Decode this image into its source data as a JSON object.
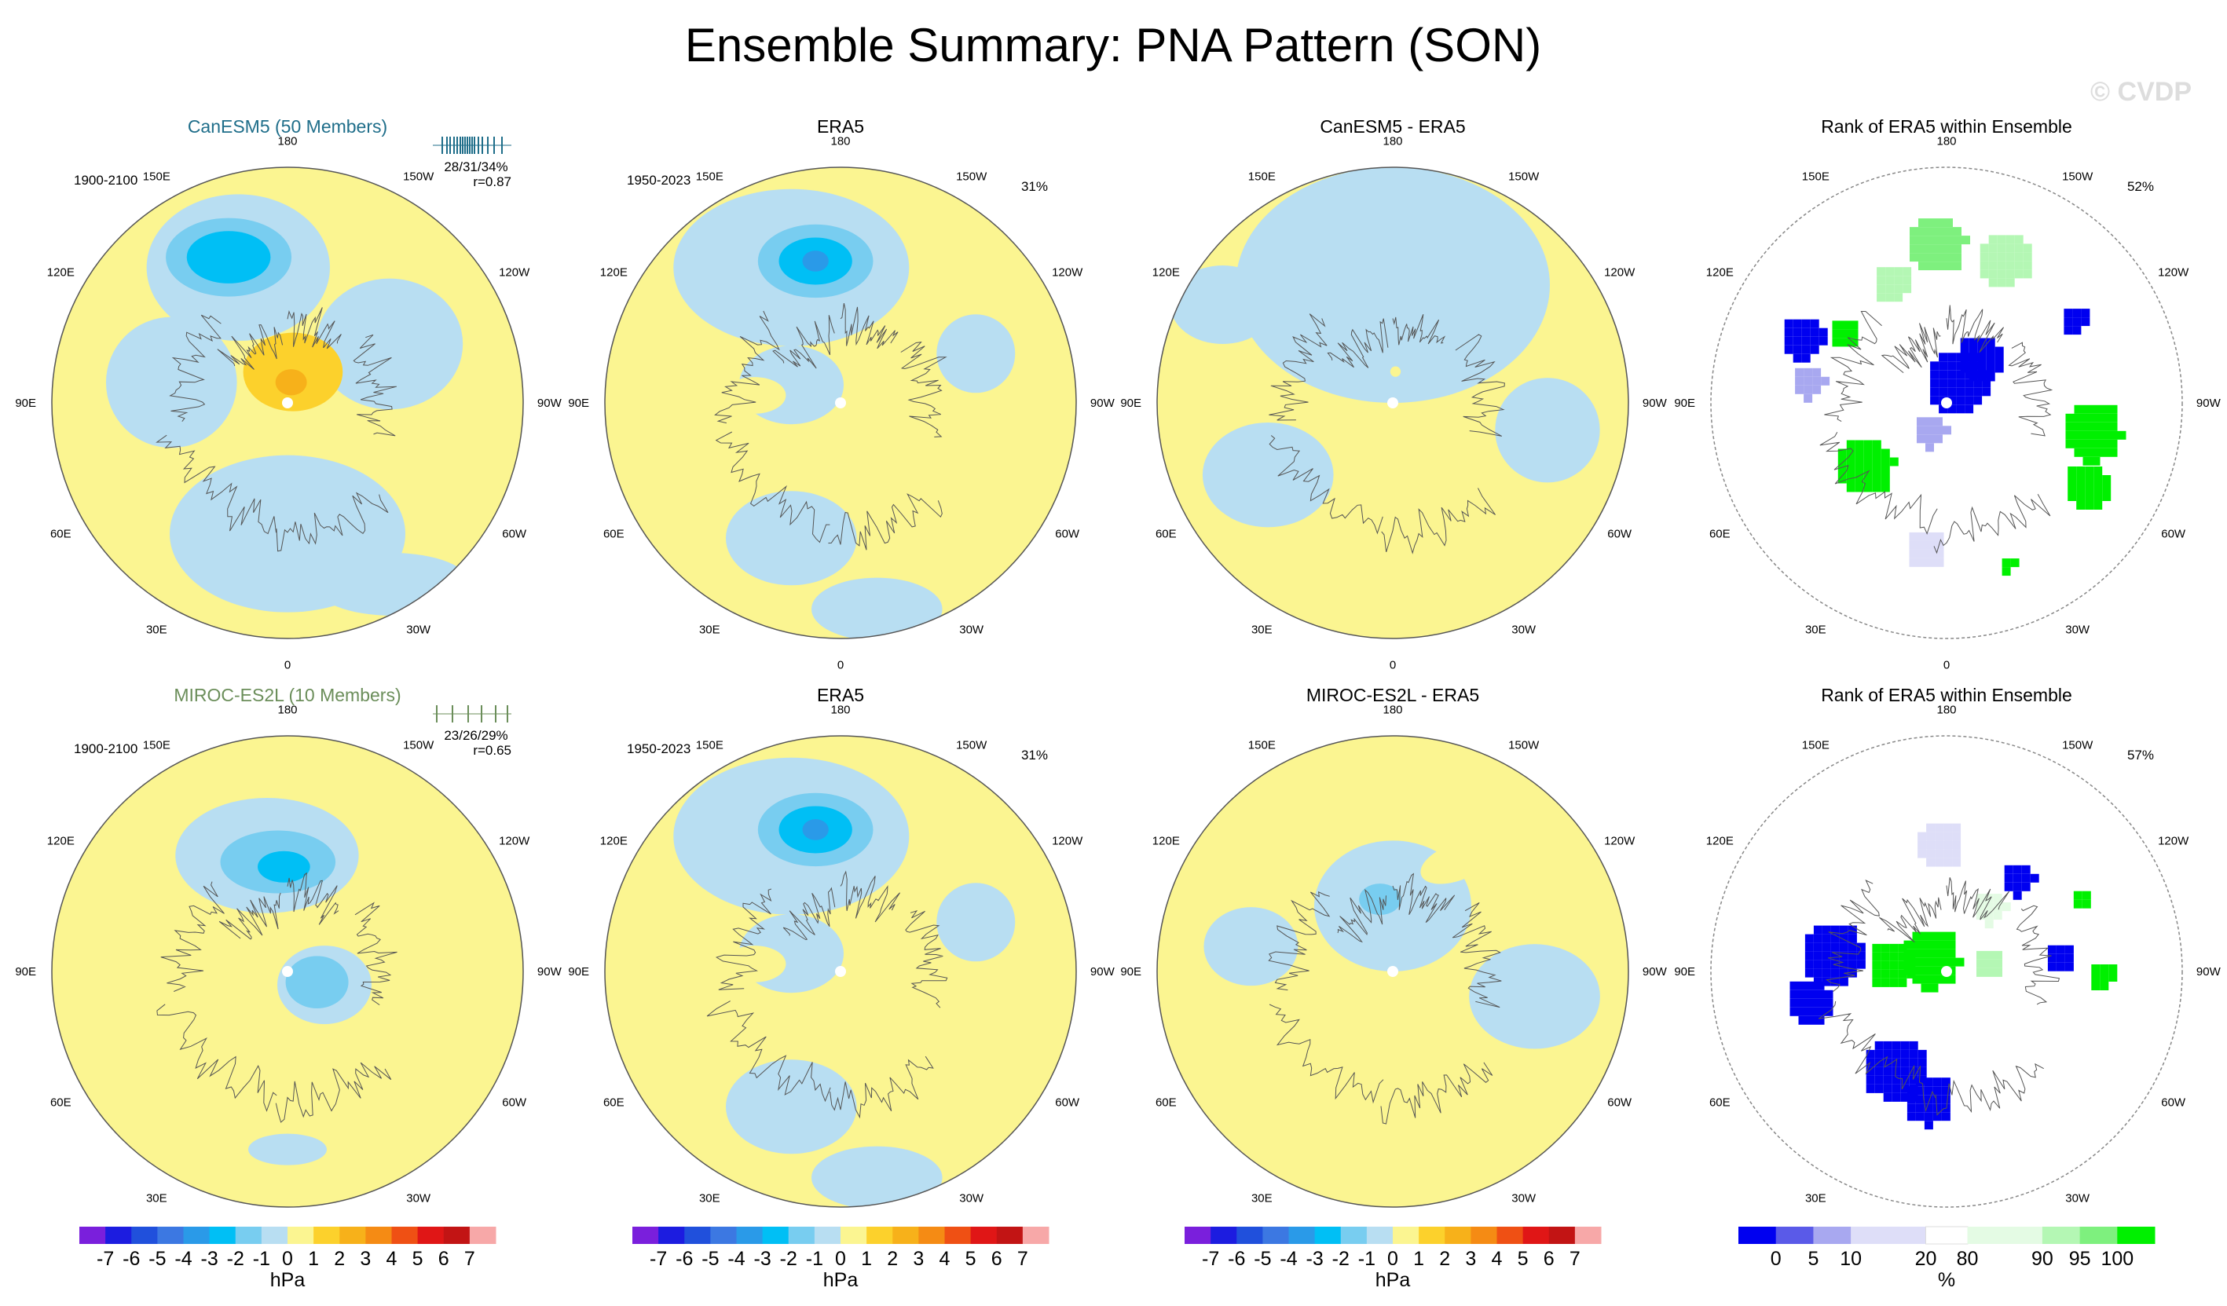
{
  "header": {
    "title": "Ensemble Summary: PNA Pattern (SON)",
    "watermark": "© CVDP"
  },
  "chart_data": {
    "type": "heatmap",
    "projection": "north-polar-stereographic",
    "units": "hPa",
    "lon_labels": [
      "180",
      "150E",
      "120E",
      "90E",
      "60E",
      "30E",
      "0",
      "30W",
      "60W",
      "90W",
      "120W",
      "150W"
    ],
    "panels": [
      {
        "row": 0,
        "kind": "model",
        "title": "CanESM5 (50 Members)",
        "title_color": "#1f6e8a",
        "period": "1900-2100",
        "stats": "28/31/34%",
        "corr": "r=0.87",
        "tick_color": "#1f6e8a",
        "ticks": [
          0.12,
          0.18,
          0.22,
          0.27,
          0.31,
          0.35,
          0.38,
          0.41,
          0.44,
          0.47,
          0.5,
          0.53,
          0.58,
          0.63,
          0.7,
          0.78,
          0.88
        ],
        "blobs": [
          {
            "lon": 158,
            "colat": 60,
            "a": 24,
            "b": 15,
            "rot": 0,
            "v": -2
          },
          {
            "lon": 158,
            "colat": 60,
            "a": 16,
            "b": 10,
            "rot": 0,
            "v": -3
          },
          {
            "lon": 190,
            "colat": 12,
            "a": 19,
            "b": 15,
            "rot": 0,
            "v": 2
          },
          {
            "lon": 190,
            "colat": 8,
            "a": 6,
            "b": 5,
            "rot": 0,
            "v": 3
          }
        ]
      },
      {
        "row": 0,
        "kind": "obs",
        "title": "ERA5",
        "period": "1950-2023",
        "pct": "31%",
        "blobs": [
          {
            "lon": 170,
            "colat": 55,
            "a": 22,
            "b": 14,
            "rot": 0,
            "v": -2
          },
          {
            "lon": 170,
            "colat": 55,
            "a": 14,
            "b": 9,
            "rot": 0,
            "v": -3
          },
          {
            "lon": 170,
            "colat": 55,
            "a": 5,
            "b": 4,
            "rot": 0,
            "v": -4
          },
          {
            "lon": 95,
            "colat": 33,
            "a": 12,
            "b": 7,
            "rot": 0,
            "v": 1
          }
        ]
      },
      {
        "row": 0,
        "kind": "diff",
        "title": "CanESM5 - ERA5",
        "blobs": [
          {
            "lon": -60,
            "colat": 32,
            "a": 5,
            "b": 4,
            "rot": 0,
            "v": 1
          },
          {
            "lon": 185,
            "colat": 12,
            "a": 2,
            "b": 2,
            "rot": 0,
            "v": 1
          }
        ]
      },
      {
        "row": 0,
        "kind": "rank",
        "title": "Rank of ERA5 within Ensemble",
        "pct": "52%",
        "cells": [
          {
            "lon": 200,
            "colat": 10,
            "rad": 13,
            "v": 0
          },
          {
            "lon": 210,
            "colat": 22,
            "rad": 9,
            "v": 0
          },
          {
            "lon": 40,
            "colat": 12,
            "rad": 7,
            "v": 10
          },
          {
            "lon": 115,
            "colat": 62,
            "rad": 9,
            "v": 0
          },
          {
            "lon": 100,
            "colat": 55,
            "rad": 7,
            "v": 10
          },
          {
            "lon": -125,
            "colat": 58,
            "rad": 6,
            "v": 0
          },
          {
            "lon": -80,
            "colat": 55,
            "rad": 12,
            "v": 100
          },
          {
            "lon": -60,
            "colat": 60,
            "rad": 9,
            "v": 100
          },
          {
            "lon": 55,
            "colat": 40,
            "rad": 12,
            "v": 100
          },
          {
            "lon": 125,
            "colat": 50,
            "rad": 6,
            "v": 100
          },
          {
            "lon": -160,
            "colat": 60,
            "rad": 11,
            "v": 90
          },
          {
            "lon": 175,
            "colat": 62,
            "rad": 12,
            "v": 95
          },
          {
            "lon": 155,
            "colat": 52,
            "rad": 8,
            "v": 90
          },
          {
            "lon": -20,
            "colat": 64,
            "rad": 4,
            "v": 100
          },
          {
            "lon": 10,
            "colat": 55,
            "rad": 8,
            "v": 20
          }
        ]
      },
      {
        "row": 1,
        "kind": "model",
        "title": "MIROC-ES2L (10 Members)",
        "title_color": "#6b8e5a",
        "period": "1900-2100",
        "stats": "23/26/29%",
        "corr": "r=0.65",
        "tick_color": "#6b8e5a",
        "ticks": [
          0.05,
          0.25,
          0.45,
          0.62,
          0.8,
          0.95
        ],
        "blobs": [
          {
            "lon": 175,
            "colat": 42,
            "a": 22,
            "b": 12,
            "rot": 0,
            "v": -2
          },
          {
            "lon": 178,
            "colat": 40,
            "a": 10,
            "b": 6,
            "rot": 0,
            "v": -3
          },
          {
            "lon": -70,
            "colat": 12,
            "a": 12,
            "b": 10,
            "rot": 0,
            "v": -2
          }
        ]
      },
      {
        "row": 1,
        "kind": "obs",
        "title": "ERA5",
        "period": "1950-2023",
        "pct": "31%",
        "blobs": [
          {
            "lon": 170,
            "colat": 55,
            "a": 22,
            "b": 14,
            "rot": 0,
            "v": -2
          },
          {
            "lon": 170,
            "colat": 55,
            "a": 14,
            "b": 9,
            "rot": 0,
            "v": -3
          },
          {
            "lon": 170,
            "colat": 55,
            "a": 5,
            "b": 4,
            "rot": 0,
            "v": -4
          },
          {
            "lon": 95,
            "colat": 33,
            "a": 12,
            "b": 7,
            "rot": 0,
            "v": 1
          }
        ]
      },
      {
        "row": 1,
        "kind": "diff",
        "title": "MIROC-ES2L - ERA5",
        "blobs": [
          {
            "lon": -150,
            "colat": 48,
            "a": 14,
            "b": 7,
            "rot": -20,
            "v": 1
          },
          {
            "lon": 165,
            "colat": 22,
            "a": 20,
            "b": 18,
            "rot": 0,
            "v": -1
          },
          {
            "lon": 170,
            "colat": 28,
            "a": 8,
            "b": 6,
            "rot": 0,
            "v": -2
          },
          {
            "lon": -10,
            "colat": 45,
            "a": 4,
            "b": 3,
            "rot": 0,
            "v": 1
          }
        ]
      },
      {
        "row": 1,
        "kind": "rank",
        "title": "Rank of ERA5 within Ensemble",
        "pct": "57%",
        "cells": [
          {
            "lon": 100,
            "colat": 45,
            "rad": 13,
            "v": 0
          },
          {
            "lon": 80,
            "colat": 55,
            "rad": 9,
            "v": 0
          },
          {
            "lon": 30,
            "colat": 42,
            "rad": 13,
            "v": 0
          },
          {
            "lon": 10,
            "colat": 48,
            "rad": 10,
            "v": 0
          },
          {
            "lon": -100,
            "colat": 42,
            "rad": 6,
            "v": 0
          },
          {
            "lon": -145,
            "colat": 45,
            "rad": 7,
            "v": 0
          },
          {
            "lon": 130,
            "colat": 10,
            "rad": 12,
            "v": 100
          },
          {
            "lon": 100,
            "colat": 22,
            "rad": 10,
            "v": 100
          },
          {
            "lon": -90,
            "colat": 58,
            "rad": 6,
            "v": 100
          },
          {
            "lon": -120,
            "colat": 58,
            "rad": 5,
            "v": 100
          },
          {
            "lon": -110,
            "colat": 15,
            "rad": 6,
            "v": 90
          },
          {
            "lon": -150,
            "colat": 30,
            "rad": 7,
            "v": 80
          },
          {
            "lon": 175,
            "colat": 50,
            "rad": 10,
            "v": 20
          }
        ]
      }
    ],
    "colorbars": [
      {
        "panel": 0,
        "ticks": [
          "-7",
          "-6",
          "-5",
          "-4",
          "-3",
          "-2",
          "-1",
          "0",
          "1",
          "2",
          "3",
          "4",
          "5",
          "6",
          "7"
        ],
        "label": "hPa"
      },
      {
        "panel": 1,
        "ticks": [
          "-7",
          "-6",
          "-5",
          "-4",
          "-3",
          "-2",
          "-1",
          "0",
          "1",
          "2",
          "3",
          "4",
          "5",
          "6",
          "7"
        ],
        "label": "hPa"
      },
      {
        "panel": 2,
        "ticks": [
          "-7",
          "-6",
          "-5",
          "-4",
          "-3",
          "-2",
          "-1",
          "0",
          "1",
          "2",
          "3",
          "4",
          "5",
          "6",
          "7"
        ],
        "label": "hPa"
      },
      {
        "panel": 3,
        "ticks": [
          "0",
          "5",
          "10",
          "20",
          "80",
          "90",
          "95",
          "100"
        ],
        "label": "%"
      }
    ],
    "diverging_colors": [
      "#7a1fdc",
      "#1c1ce0",
      "#2050dc",
      "#3c78e2",
      "#2a9ae8",
      "#00bff5",
      "#78cdf0",
      "#b8def2",
      "#fbf591",
      "#fcd12c",
      "#f7b11a",
      "#f58b14",
      "#ef5014",
      "#e01616",
      "#c21414",
      "#f7a8a8"
    ],
    "rank_colors": [
      "#0000f0",
      "#5a5ae8",
      "#a8a8f0",
      "#dedef8",
      "#ffffff",
      "#e4fbe4",
      "#b4f7b4",
      "#7ef07e",
      "#00f000"
    ]
  }
}
